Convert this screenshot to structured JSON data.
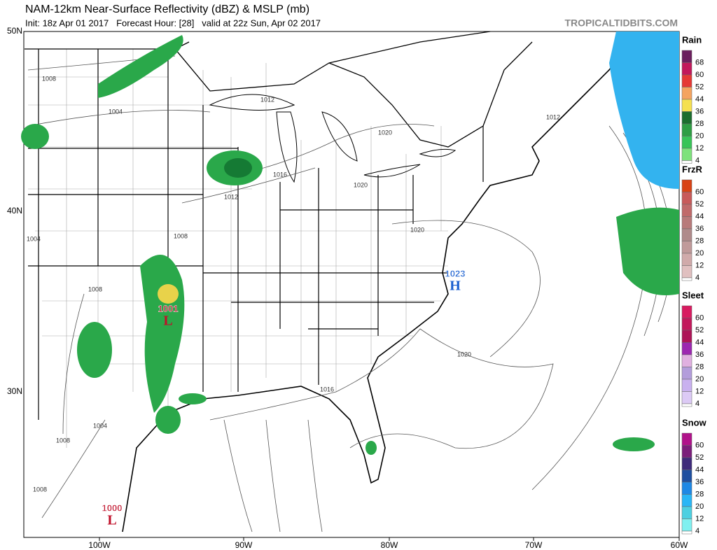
{
  "header": {
    "title": "NAM-12km Near-Surface Reflectivity (dBZ) & MSLP (mb)",
    "subtitle": "Init: 18z Apr 01 2017   Forecast Hour: [28]   valid at 22z Sun, Apr 02 2017",
    "watermark": "TROPICALTIDBITS.COM"
  },
  "map": {
    "lat_labels": [
      "50N",
      "40N",
      "30N"
    ],
    "lon_labels": [
      "100W",
      "90W",
      "80W",
      "70W",
      "60W"
    ],
    "pressure_centers": [
      {
        "label": "1023",
        "letter": "H"
      },
      {
        "label": "1001",
        "letter": "L"
      },
      {
        "label": "1000",
        "letter": "L"
      }
    ],
    "isobar_labels": [
      "1008",
      "1004",
      "1012",
      "1016",
      "1020",
      "1012",
      "1020",
      "1012",
      "1004",
      "1008",
      "1008",
      "1016",
      "1020",
      "1020",
      "1004",
      "1008",
      "1008"
    ]
  },
  "legend": [
    {
      "title": "Rain",
      "levels": [
        68,
        60,
        52,
        44,
        36,
        28,
        20,
        12,
        4
      ]
    },
    {
      "title": "FrzR",
      "levels": [
        60,
        52,
        44,
        36,
        28,
        20,
        12,
        4
      ]
    },
    {
      "title": "Sleet",
      "levels": [
        60,
        52,
        44,
        36,
        28,
        20,
        12,
        4
      ]
    },
    {
      "title": "Snow",
      "levels": [
        60,
        52,
        44,
        36,
        28,
        20,
        12,
        4
      ]
    }
  ]
}
